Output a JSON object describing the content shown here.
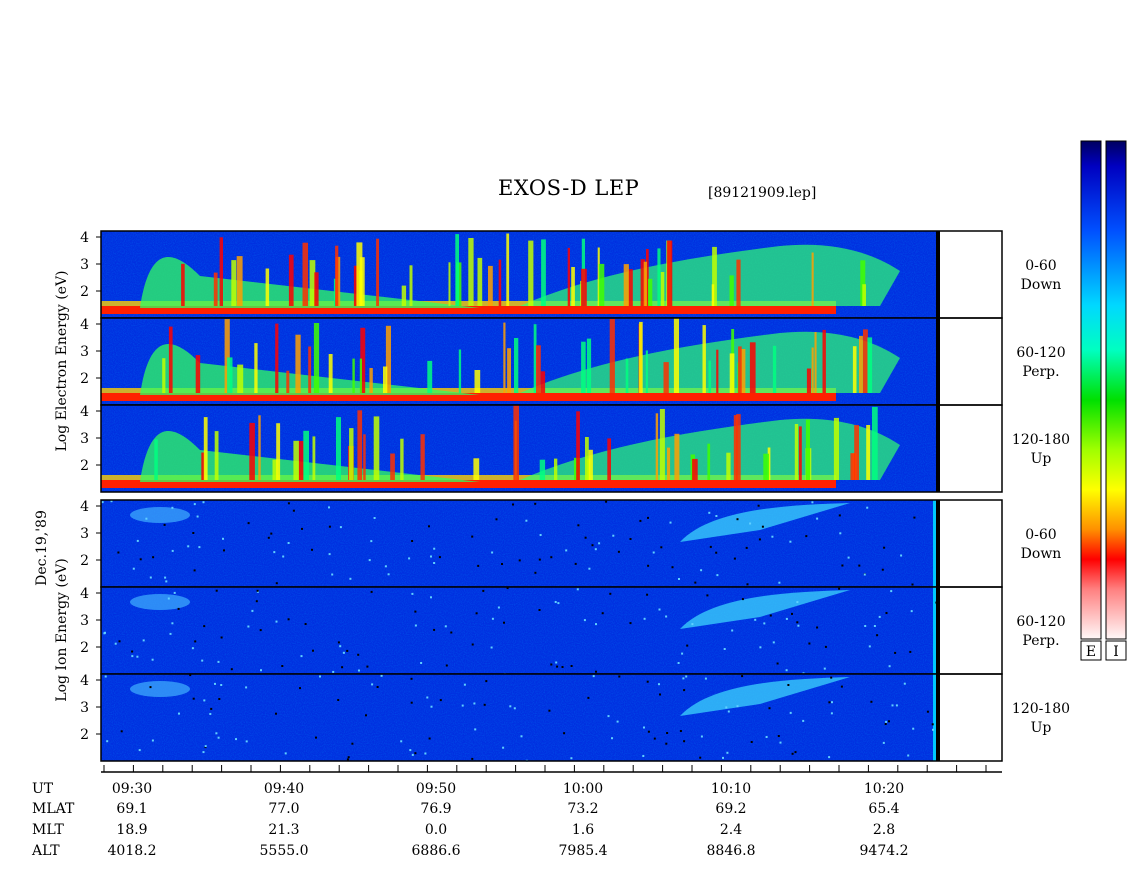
{
  "header": {
    "title": "EXOS-D LEP",
    "filename": "[89121909.lep]"
  },
  "chart_data": {
    "type": "heatmap",
    "title": "EXOS-D LEP",
    "date_label": "Dec.19,'89",
    "y_ticks": [
      "4",
      "3",
      "2"
    ],
    "electron_axis_words": [
      "Energy",
      "(eV)",
      "Electron",
      "Log"
    ],
    "ion_axis_words": [
      "Energy",
      "(eV)",
      "Ion",
      "Log"
    ],
    "panels": [
      {
        "species": "Electron",
        "pitch": "0-60",
        "direction": "Down"
      },
      {
        "species": "Electron",
        "pitch": "60-120",
        "direction": "Perp."
      },
      {
        "species": "Electron",
        "pitch": "120-180",
        "direction": "Up"
      },
      {
        "species": "Ion",
        "pitch": "0-60",
        "direction": "Down"
      },
      {
        "species": "Ion",
        "pitch": "60-120",
        "direction": "Perp."
      },
      {
        "species": "Ion",
        "pitch": "120-180",
        "direction": "Up"
      }
    ],
    "orbit_table": {
      "row_labels": [
        "UT",
        "MLAT",
        "MLT",
        "ALT"
      ],
      "columns": [
        {
          "UT": "09:30",
          "MLAT": "69.1",
          "MLT": "18.9",
          "ALT": "4018.2"
        },
        {
          "UT": "09:40",
          "MLAT": "77.0",
          "MLT": "21.3",
          "ALT": "5555.0"
        },
        {
          "UT": "09:50",
          "MLAT": "76.9",
          "MLT": "0.0",
          "ALT": "6886.6"
        },
        {
          "UT": "10:00",
          "MLAT": "73.2",
          "MLT": "1.6",
          "ALT": "7985.4"
        },
        {
          "UT": "10:10",
          "MLAT": "69.2",
          "MLT": "2.4",
          "ALT": "8846.8"
        },
        {
          "UT": "10:20",
          "MLAT": "65.4",
          "MLT": "2.8",
          "ALT": "9474.2"
        }
      ]
    },
    "colorbar_labels": [
      "E",
      "I"
    ],
    "colorscale": [
      "#000090",
      "#0000ff",
      "#0070ff",
      "#00d0ff",
      "#00ffd0",
      "#00ff60",
      "#40ff00",
      "#c0ff00",
      "#ffff00",
      "#ffb000",
      "#ff6000",
      "#ff0000",
      "#ff7070",
      "#ffc8c8",
      "#ffffff"
    ]
  }
}
